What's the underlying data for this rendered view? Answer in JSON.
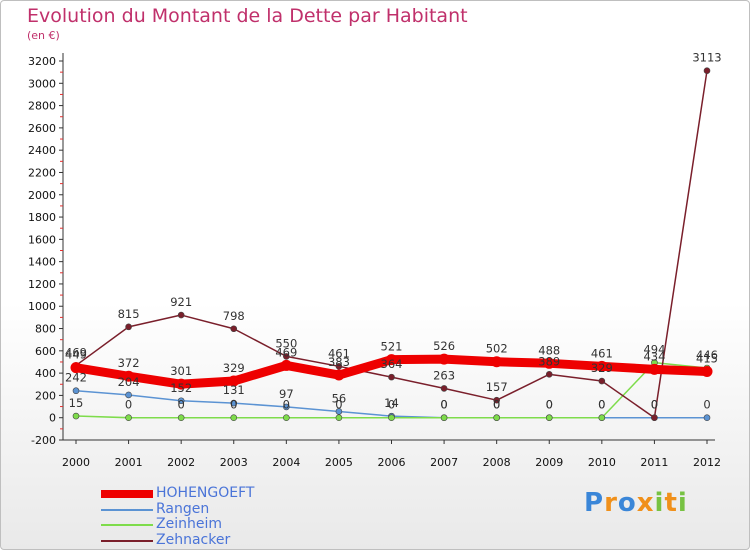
{
  "chart_data": {
    "type": "line",
    "title": "Evolution du Montant de la Dette par Habitant",
    "subtitle": "(en €)",
    "x": [
      "2000",
      "2001",
      "2002",
      "2003",
      "2004",
      "2005",
      "2006",
      "2007",
      "2008",
      "2009",
      "2010",
      "2011",
      "2012"
    ],
    "yticks": [
      3200,
      3000,
      2800,
      2600,
      2400,
      2200,
      2000,
      1800,
      1600,
      1400,
      1200,
      1000,
      800,
      600,
      400,
      200,
      0,
      -200
    ],
    "ylim": [
      -200,
      3200
    ],
    "grid": false,
    "legend_position": "bottom-left",
    "series": [
      {
        "name": "HOHENGOEFT",
        "color": "#ee0000",
        "values": [
          449,
          372,
          301,
          329,
          469,
          383,
          521,
          526,
          502,
          488,
          461,
          434,
          415
        ],
        "labels": [
          "449",
          "372",
          "301",
          "329",
          "469",
          "383",
          "521",
          "526",
          "502",
          "488",
          "461",
          "434",
          "415"
        ]
      },
      {
        "name": "Rangen",
        "color": "#5b93d3",
        "values": [
          242,
          204,
          152,
          131,
          97,
          56,
          14,
          0,
          0,
          0,
          0,
          0,
          0
        ],
        "labels": [
          "242",
          "204",
          "152",
          "131",
          "97",
          "56",
          "14",
          "0",
          "0",
          "0",
          "0",
          "0",
          "0"
        ]
      },
      {
        "name": "Zeinheim",
        "color": "#7edc4b",
        "values": [
          15,
          0,
          0,
          0,
          0,
          0,
          0,
          0,
          0,
          0,
          0,
          494,
          446
        ],
        "labels": [
          "15",
          "0",
          "0",
          "0",
          "0",
          "0",
          "0",
          "0",
          "0",
          "0",
          "0",
          "494",
          "446"
        ]
      },
      {
        "name": "Zehnacker",
        "color": "#7a1f2b",
        "values": [
          469,
          815,
          921,
          798,
          550,
          461,
          364,
          263,
          157,
          389,
          329,
          0,
          3113
        ],
        "labels": [
          "469",
          "815",
          "921",
          "798",
          "550",
          "461",
          "364",
          "263",
          "157",
          "389",
          "329",
          "0",
          "3113"
        ]
      }
    ]
  },
  "brand": {
    "logo_text": "Proxiti",
    "letters": [
      "P",
      "r",
      "o",
      "x",
      "i",
      "t",
      "i"
    ],
    "colors": [
      "#3a86d8",
      "#f0901a",
      "#3a86d8",
      "#f0901a",
      "#77c242",
      "#f0901a",
      "#77c242"
    ]
  }
}
